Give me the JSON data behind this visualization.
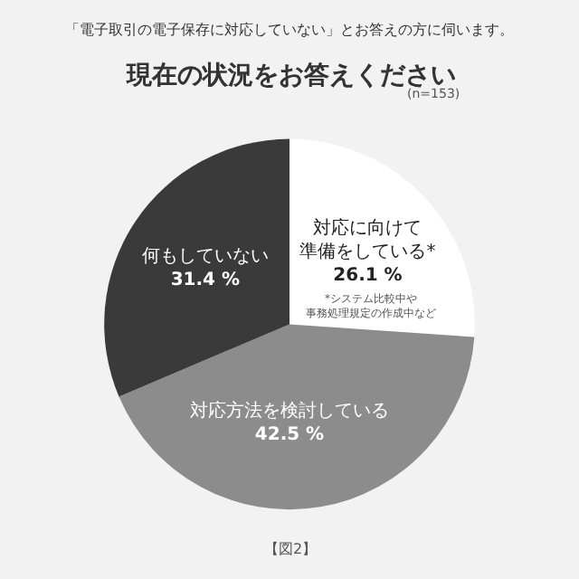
{
  "chart_data": {
    "type": "pie",
    "title": "現在の状況をお答えください",
    "subtitle": "「電子取引の電子保存に対応していない」とお答えの方に伺います。",
    "categories": [
      "対応に向けて準備をしている*",
      "対応方法を検討している",
      "何もしていない"
    ],
    "values": [
      26.1,
      42.5,
      31.4
    ],
    "colors": [
      "#ffffff",
      "#8c8c8c",
      "#3a3a3a"
    ],
    "value_labels": [
      "26.1 %",
      "42.5 %",
      "31.4 %"
    ],
    "annotations": [
      "(n=153)",
      "*システム比較中や事務処理規定の作成中など",
      "【図2】"
    ],
    "legend": false
  }
}
